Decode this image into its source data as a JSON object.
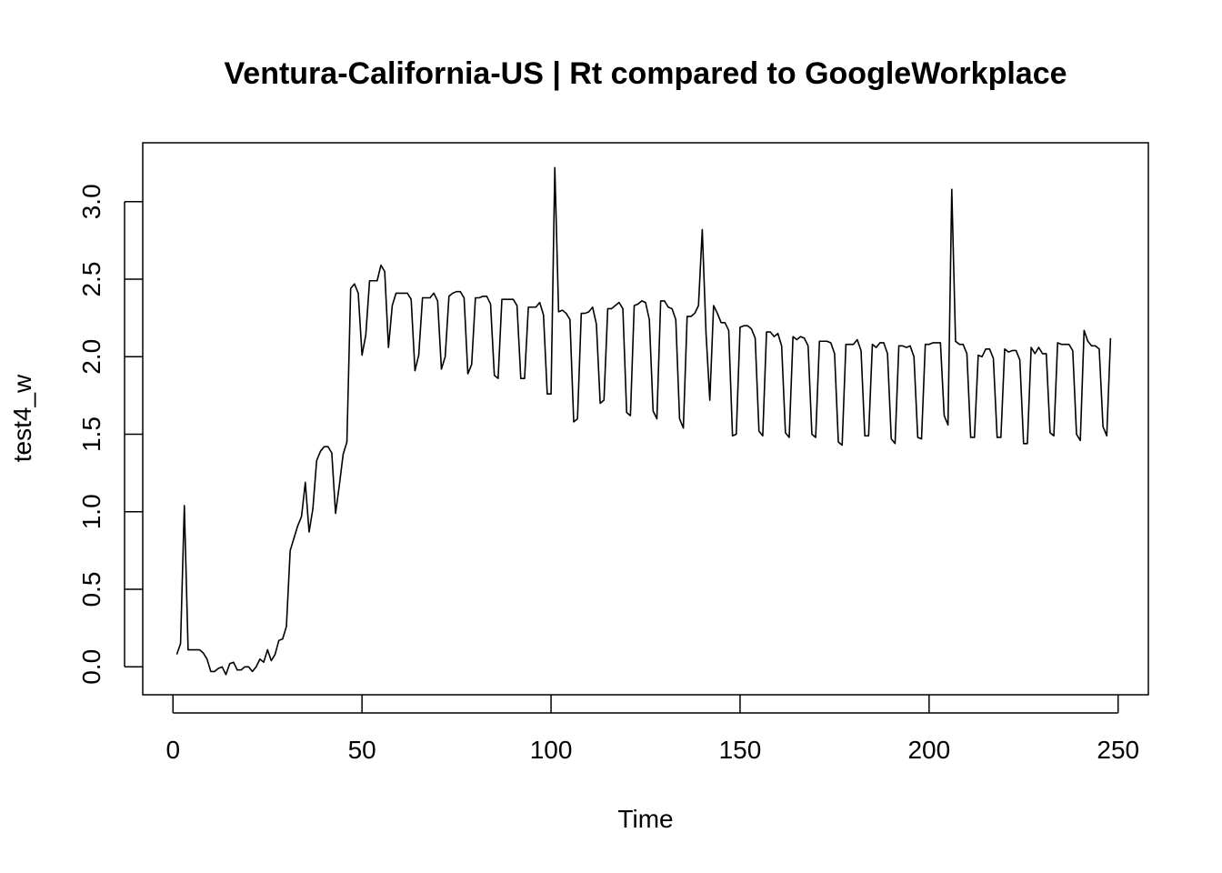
{
  "chart_data": {
    "type": "line",
    "title": "Ventura-California-US | Rt compared to GoogleWorkplace",
    "xlabel": "Time",
    "ylabel": "test4_w",
    "xlim": [
      -8,
      258
    ],
    "ylim": [
      -0.18,
      3.38
    ],
    "xticks": [
      0,
      50,
      100,
      150,
      200,
      250
    ],
    "xtick_labels": [
      "0",
      "50",
      "100",
      "150",
      "200",
      "250"
    ],
    "yticks": [
      0.0,
      0.5,
      1.0,
      1.5,
      2.0,
      2.5,
      3.0
    ],
    "ytick_labels": [
      "0.0",
      "0.5",
      "1.0",
      "1.5",
      "2.0",
      "2.5",
      "3.0"
    ],
    "grid": false,
    "series": [
      {
        "color": "#000000",
        "x_start": 1,
        "x_step": 1,
        "y": [
          0.08,
          0.15,
          1.04,
          0.11,
          0.11,
          0.11,
          0.11,
          0.09,
          0.05,
          -0.03,
          -0.03,
          -0.01,
          0.0,
          -0.05,
          0.02,
          0.03,
          -0.02,
          -0.02,
          0.0,
          0.0,
          -0.03,
          0.0,
          0.05,
          0.03,
          0.11,
          0.04,
          0.08,
          0.17,
          0.18,
          0.26,
          0.75,
          0.83,
          0.91,
          0.97,
          1.19,
          0.87,
          1.02,
          1.33,
          1.39,
          1.42,
          1.42,
          1.38,
          0.99,
          1.17,
          1.37,
          1.45,
          2.44,
          2.47,
          2.41,
          2.01,
          2.14,
          2.49,
          2.49,
          2.49,
          2.59,
          2.55,
          2.06,
          2.33,
          2.41,
          2.41,
          2.41,
          2.41,
          2.37,
          1.91,
          2.01,
          2.38,
          2.38,
          2.38,
          2.41,
          2.36,
          1.92,
          2.0,
          2.39,
          2.41,
          2.42,
          2.42,
          2.38,
          1.89,
          1.95,
          2.38,
          2.38,
          2.39,
          2.39,
          2.34,
          1.88,
          1.86,
          2.37,
          2.37,
          2.37,
          2.37,
          2.33,
          1.86,
          1.86,
          2.32,
          2.32,
          2.32,
          2.35,
          2.27,
          1.76,
          1.76,
          3.22,
          2.29,
          2.3,
          2.28,
          2.24,
          1.58,
          1.6,
          2.28,
          2.28,
          2.29,
          2.32,
          2.21,
          1.7,
          1.72,
          2.31,
          2.31,
          2.33,
          2.35,
          2.31,
          1.64,
          1.62,
          2.33,
          2.34,
          2.36,
          2.35,
          2.24,
          1.65,
          1.6,
          2.36,
          2.36,
          2.32,
          2.31,
          2.24,
          1.6,
          1.54,
          2.26,
          2.26,
          2.28,
          2.33,
          2.82,
          2.15,
          1.72,
          2.33,
          2.28,
          2.22,
          2.22,
          2.17,
          1.49,
          1.5,
          2.19,
          2.2,
          2.2,
          2.18,
          2.12,
          1.52,
          1.49,
          2.16,
          2.16,
          2.13,
          2.15,
          2.07,
          1.51,
          1.48,
          2.13,
          2.11,
          2.13,
          2.12,
          2.07,
          1.5,
          1.48,
          2.1,
          2.1,
          2.1,
          2.09,
          2.02,
          1.45,
          1.43,
          2.08,
          2.08,
          2.08,
          2.11,
          2.04,
          1.49,
          1.49,
          2.08,
          2.06,
          2.09,
          2.09,
          2.02,
          1.47,
          1.44,
          2.07,
          2.07,
          2.06,
          2.07,
          2.0,
          1.48,
          1.47,
          2.08,
          2.08,
          2.09,
          2.09,
          2.09,
          1.62,
          1.56,
          3.08,
          2.1,
          2.08,
          2.08,
          2.02,
          1.48,
          1.48,
          2.01,
          2.0,
          2.05,
          2.05,
          1.99,
          1.48,
          1.48,
          2.05,
          2.03,
          2.04,
          2.04,
          1.98,
          1.44,
          1.44,
          2.06,
          2.02,
          2.06,
          2.02,
          2.02,
          1.51,
          1.49,
          2.09,
          2.08,
          2.08,
          2.08,
          2.04,
          1.5,
          1.46,
          2.17,
          2.1,
          2.07,
          2.07,
          2.05,
          1.55,
          1.49,
          2.12
        ]
      }
    ]
  }
}
